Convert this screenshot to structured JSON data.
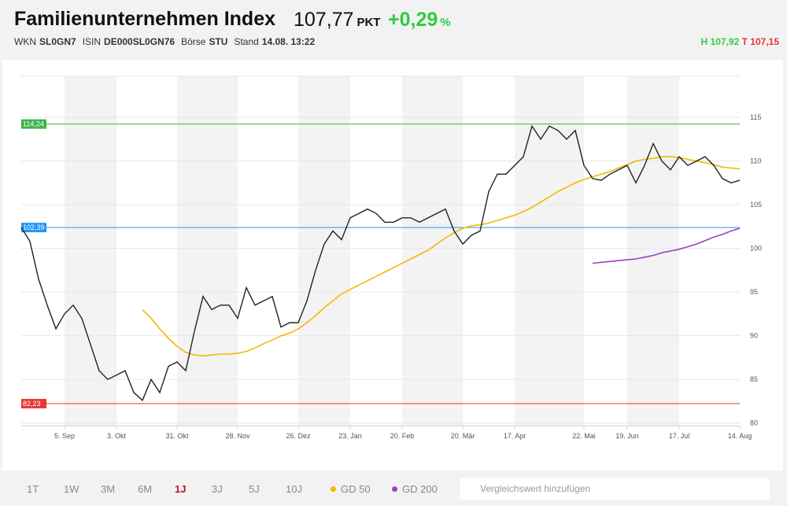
{
  "header": {
    "title": "Familienunternehmen Index",
    "price": "107,77",
    "unit": "PKT",
    "change": "+0,29",
    "change_unit": "%",
    "meta": [
      [
        "WKN",
        "SL0GN7"
      ],
      [
        "ISIN",
        "DE000SL0GN76"
      ],
      [
        "Börse",
        "STU"
      ],
      [
        "Stand",
        "14.08. 13:22"
      ]
    ],
    "high_label": "H",
    "high": "107,92",
    "low_label": "T",
    "low": "107,15"
  },
  "chart_data": {
    "type": "line",
    "categories": [
      null,
      null,
      null,
      null,
      null,
      "5. Sep",
      null,
      null,
      null,
      null,
      null,
      "3. Okt",
      null,
      null,
      null,
      null,
      null,
      null,
      "31. Okt",
      null,
      null,
      null,
      null,
      null,
      null,
      "28. Nov",
      null,
      null,
      null,
      null,
      null,
      null,
      "26. Dez",
      null,
      null,
      null,
      null,
      null,
      "23. Jan",
      null,
      null,
      null,
      null,
      null,
      "20. Feb",
      null,
      null,
      null,
      null,
      null,
      null,
      "20. Mär",
      null,
      null,
      null,
      null,
      null,
      "17. Apr",
      null,
      null,
      null,
      null,
      null,
      null,
      null,
      "22. Mai",
      null,
      null,
      null,
      null,
      "19. Jun",
      null,
      null,
      null,
      null,
      null,
      "17. Jul",
      null,
      null,
      null,
      null,
      null,
      null,
      "14. Aug"
    ],
    "series": [
      {
        "color": "#222222",
        "values": [
          102.4,
          100.8,
          96.5,
          93.5,
          90.8,
          92.5,
          93.5,
          92,
          89,
          86,
          85,
          85.5,
          86,
          83.5,
          82.6,
          85,
          83.5,
          86.5,
          87,
          86,
          90.5,
          94.5,
          93,
          93.5,
          93.5,
          92,
          95.5,
          93.5,
          94,
          94.5,
          91,
          91.5,
          91.5,
          94,
          97.5,
          100.5,
          102,
          101,
          103.5,
          104,
          104.5,
          104,
          103,
          103,
          103.5,
          103.5,
          103,
          103.5,
          104,
          104.5,
          102,
          100.5,
          101.5,
          102,
          106.5,
          108.5,
          108.5,
          109.5,
          110.5,
          114,
          112.5,
          114,
          113.5,
          112.5,
          113.5,
          109.5,
          108,
          107.8,
          108.5,
          109,
          109.5,
          107.5,
          109.5,
          112,
          110,
          109,
          110.5,
          109.5,
          110,
          110.5,
          109.5,
          108,
          107.5,
          107.8
        ]
      },
      {
        "name": "GD 50",
        "color": "#f5b800",
        "values": [
          null,
          null,
          null,
          null,
          null,
          null,
          null,
          null,
          null,
          null,
          null,
          null,
          null,
          null,
          93.0,
          92.0,
          90.8,
          89.7,
          88.8,
          88.1,
          87.8,
          87.7,
          87.8,
          87.9,
          87.9,
          88.0,
          88.2,
          88.6,
          89.1,
          89.5,
          90.0,
          90.3,
          90.8,
          91.5,
          92.3,
          93.2,
          94.0,
          94.8,
          95.3,
          95.8,
          96.3,
          96.8,
          97.3,
          97.8,
          98.3,
          98.8,
          99.3,
          99.8,
          100.5,
          101.2,
          101.8,
          102.3,
          102.6,
          102.7,
          102.9,
          103.2,
          103.5,
          103.8,
          104.2,
          104.7,
          105.3,
          105.9,
          106.5,
          107.0,
          107.5,
          107.9,
          108.2,
          108.5,
          108.8,
          109.2,
          109.6,
          110.0,
          110.2,
          110.3,
          110.5,
          110.5,
          110.4,
          110.2,
          110.0,
          109.8,
          109.6,
          109.3,
          109.2,
          109.1
        ]
      },
      {
        "name": "GD 200",
        "color": "#a040c0",
        "values": [
          null,
          null,
          null,
          null,
          null,
          null,
          null,
          null,
          null,
          null,
          null,
          null,
          null,
          null,
          null,
          null,
          null,
          null,
          null,
          null,
          null,
          null,
          null,
          null,
          null,
          null,
          null,
          null,
          null,
          null,
          null,
          null,
          null,
          null,
          null,
          null,
          null,
          null,
          null,
          null,
          null,
          null,
          null,
          null,
          null,
          null,
          null,
          null,
          null,
          null,
          null,
          null,
          null,
          null,
          null,
          null,
          null,
          null,
          null,
          null,
          null,
          null,
          null,
          null,
          null,
          null,
          98.3,
          98.4,
          98.5,
          98.6,
          98.7,
          98.8,
          99.0,
          99.2,
          99.5,
          99.7,
          99.9,
          100.2,
          100.5,
          100.9,
          101.3,
          101.6,
          102.0,
          102.3
        ]
      }
    ],
    "reference_lines": [
      {
        "value": 114.24,
        "label": "114,24",
        "color": "#3cb44b"
      },
      {
        "value": 102.39,
        "label": "102,39",
        "color": "#2196f3"
      },
      {
        "value": 82.23,
        "label": "82,23",
        "color": "#e53935"
      }
    ],
    "ylim": [
      79.7,
      119.7
    ],
    "yticks": [
      80,
      85,
      90,
      95,
      100,
      105,
      110,
      115
    ],
    "grid": true
  },
  "toolbar": {
    "ranges": [
      "1T",
      "1W",
      "3M",
      "6M",
      "1J",
      "3J",
      "5J",
      "10J"
    ],
    "active": "1J",
    "search_placeholder": "Vergleichswert hinzufügen"
  }
}
